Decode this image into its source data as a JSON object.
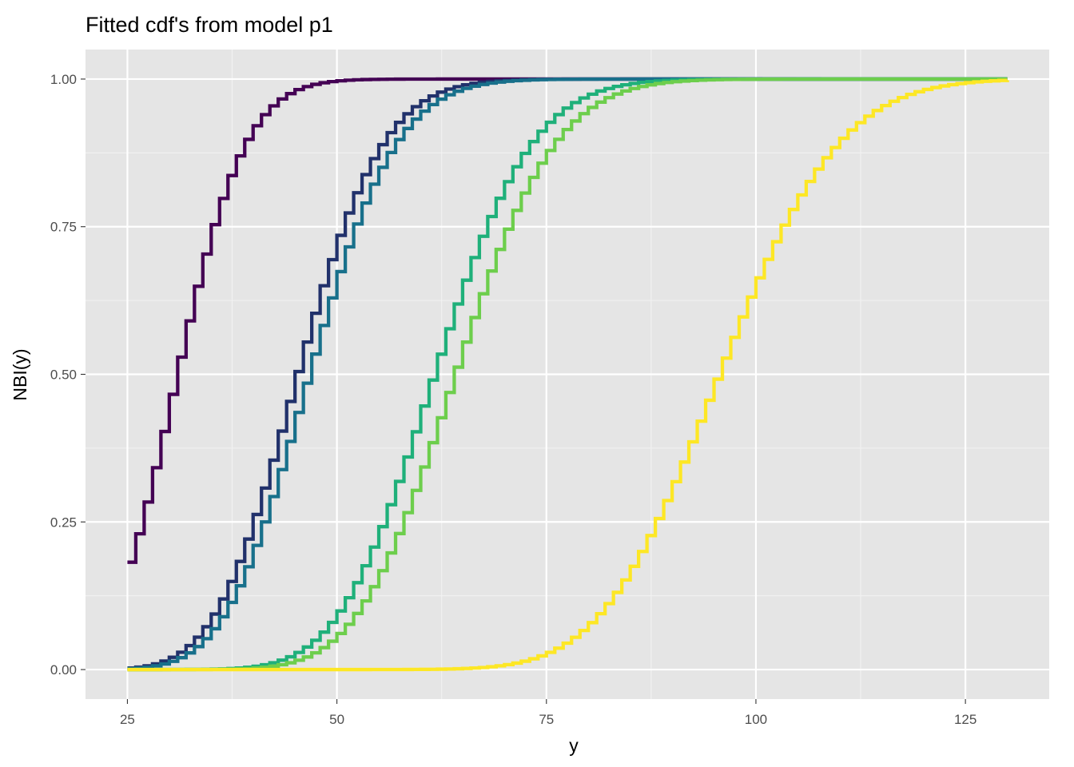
{
  "chart_data": {
    "type": "line",
    "step": true,
    "title": "Fitted cdf's from model p1",
    "xlabel": "y",
    "ylabel": "NBI(y)",
    "xlim": [
      20,
      135
    ],
    "ylim": [
      -0.05,
      1.05
    ],
    "xticks": [
      25,
      50,
      75,
      100,
      125
    ],
    "xtick_labels": [
      "25",
      "50",
      "75",
      "100",
      "125"
    ],
    "yticks": [
      0.0,
      0.25,
      0.5,
      0.75,
      1.0
    ],
    "ytick_labels": [
      "0.00",
      "0.25",
      "0.50",
      "0.75",
      "1.00"
    ],
    "x_range": [
      25,
      130
    ],
    "grid": true,
    "legend": "none",
    "panel_background": "#e5e5e5",
    "series": [
      {
        "mu": 31.3,
        "sigma": 0.0092,
        "color": "#440154"
      },
      {
        "mu": 45.7,
        "sigma": 0.0082,
        "color": "#21316b"
      },
      {
        "mu": 47.1,
        "sigma": 0.0082,
        "color": "#18708b"
      },
      {
        "mu": 62.0,
        "sigma": 0.0054,
        "color": "#1fb07a"
      },
      {
        "mu": 64.5,
        "sigma": 0.0054,
        "color": "#6dce4c"
      },
      {
        "mu": 96.0,
        "sigma": 0.0032,
        "color": "#fde725"
      }
    ]
  }
}
